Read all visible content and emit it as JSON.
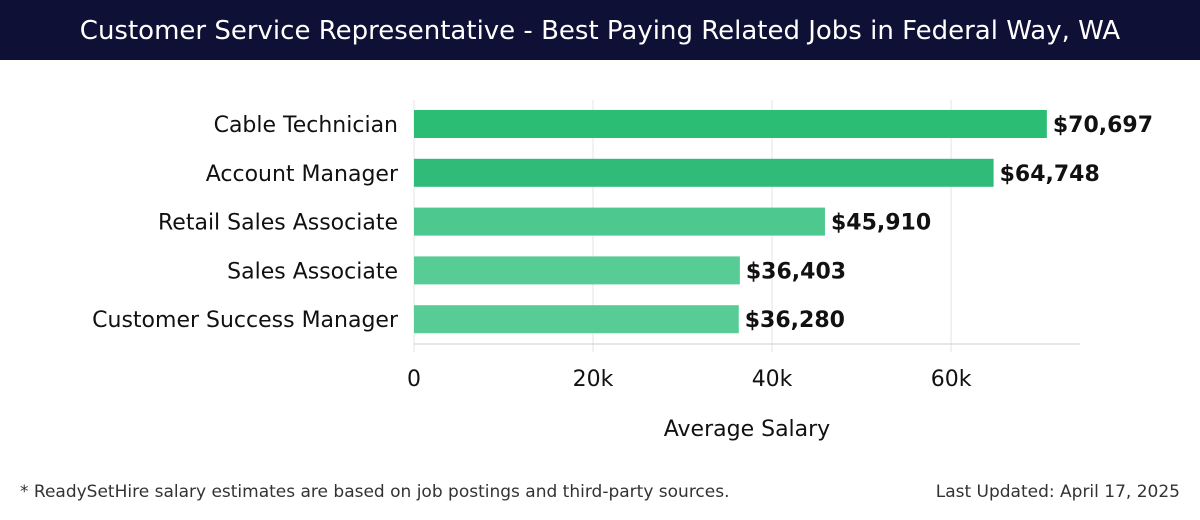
{
  "header": {
    "title": "Customer Service Representative - Best Paying Related Jobs in Federal Way, WA"
  },
  "chart_data": {
    "type": "bar",
    "orientation": "horizontal",
    "title": "Customer Service Representative - Best Paying Related Jobs in Federal Way, WA",
    "categories": [
      "Cable Technician",
      "Account Manager",
      "Retail Sales Associate",
      "Sales Associate",
      "Customer Success Manager"
    ],
    "values": [
      70697,
      64748,
      45910,
      36403,
      36280
    ],
    "value_labels": [
      "$70,697",
      "$64,748",
      "$45,910",
      "$36,403",
      "$36,280"
    ],
    "colors": [
      "#2bbd74",
      "#30bb78",
      "#4dc88e",
      "#57cd95",
      "#57cd95"
    ],
    "xlabel": "Average Salary",
    "ylabel": "",
    "xticks": [
      0,
      20000,
      40000,
      60000
    ],
    "xtick_labels": [
      "0",
      "20k",
      "40k",
      "60k"
    ],
    "xlim": [
      0,
      74400
    ],
    "grid": true
  },
  "footer": {
    "note": "* ReadySetHire salary estimates are based on job postings and third-party sources.",
    "updated": "Last Updated: April 17, 2025"
  }
}
